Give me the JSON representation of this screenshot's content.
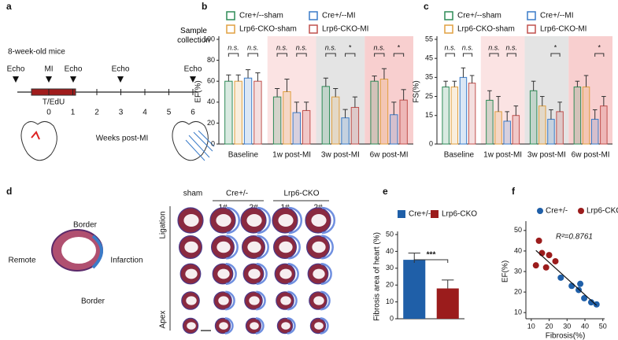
{
  "panel_labels": [
    "a",
    "b",
    "c",
    "d",
    "e",
    "f"
  ],
  "timeline": {
    "title": "8-week-old mice",
    "events": [
      "Echo",
      "MI",
      "Echo",
      "Echo",
      "Sample collection",
      "Echo"
    ],
    "treatment": "T/EdU",
    "weeks": [
      0,
      1,
      2,
      3,
      4,
      5,
      6
    ],
    "axis_label": "Weeks post-MI"
  },
  "histology": {
    "schematic": [
      "Border",
      "Remote",
      "Infarction",
      "Border"
    ],
    "columns": [
      "sham",
      "Cre+/-",
      "Lrp6-CKO"
    ],
    "replicates": [
      "1#",
      "2#",
      "1#",
      "2#"
    ],
    "axis": [
      "Ligation",
      "Apex"
    ]
  },
  "chart_data": [
    {
      "type": "bar",
      "ylabel": "EF(%)",
      "categories": [
        "Baseline",
        "1w post-MI",
        "3w post-MI",
        "6w post-MI"
      ],
      "series": [
        {
          "name": "Cre+/--sham",
          "color": "#2e8b57",
          "values": [
            60,
            45,
            55,
            60
          ],
          "errors": [
            6,
            8,
            8,
            5
          ]
        },
        {
          "name": "Lrp6-CKO-sham",
          "color": "#e0a040",
          "values": [
            60,
            50,
            45,
            62
          ],
          "errors": [
            6,
            12,
            8,
            10
          ]
        },
        {
          "name": "Cre+/--MI",
          "color": "#3a7bc8",
          "values": [
            63,
            30,
            25,
            28
          ],
          "errors": [
            8,
            10,
            8,
            12
          ]
        },
        {
          "name": "Lrp6-CKO-MI",
          "color": "#c0504d",
          "values": [
            60,
            32,
            35,
            42
          ],
          "errors": [
            8,
            8,
            10,
            10
          ]
        }
      ],
      "band_colors": [
        "#ffffff",
        "#fbe3e3",
        "#e4e4e4",
        "#f8cfcf"
      ],
      "significance": [
        [
          "n.s.",
          "n.s."
        ],
        [
          "n.s.",
          "n.s."
        ],
        [
          "n.s.",
          "*"
        ],
        [
          "n.s.",
          "*"
        ]
      ],
      "ylim": [
        0,
        100
      ],
      "yticks": [
        0,
        20,
        40,
        60,
        80,
        100
      ]
    },
    {
      "type": "bar",
      "ylabel": "FS(%)",
      "categories": [
        "Baseline",
        "1w post-MI",
        "3w post-MI",
        "6w post-MI"
      ],
      "series": [
        {
          "name": "Cre+/--sham",
          "color": "#2e8b57",
          "values": [
            30,
            23,
            28,
            30
          ],
          "errors": [
            3,
            5,
            5,
            3
          ]
        },
        {
          "name": "Lrp6-CKO-sham",
          "color": "#e0a040",
          "values": [
            30,
            17,
            20,
            30
          ],
          "errors": [
            3,
            8,
            5,
            6
          ]
        },
        {
          "name": "Cre+/--MI",
          "color": "#3a7bc8",
          "values": [
            35,
            12,
            13,
            13
          ],
          "errors": [
            5,
            5,
            5,
            5
          ]
        },
        {
          "name": "Lrp6-CKO-MI",
          "color": "#c0504d",
          "values": [
            32,
            15,
            17,
            20
          ],
          "errors": [
            4,
            5,
            5,
            5
          ]
        }
      ],
      "band_colors": [
        "#ffffff",
        "#fbe3e3",
        "#e4e4e4",
        "#f8cfcf"
      ],
      "significance": [
        [
          "n.s.",
          "n.s."
        ],
        [
          "n.s.",
          "n.s."
        ],
        [
          null,
          "*"
        ],
        [
          null,
          "*"
        ]
      ],
      "ylim": [
        0,
        55
      ],
      "yticks": [
        0,
        15,
        25,
        35,
        45,
        55
      ]
    },
    {
      "type": "bar",
      "ylabel": "Fibrosis area of heart (%)",
      "categories": [
        "Cre+/-",
        "Lrp6-CKO"
      ],
      "values": [
        35,
        18
      ],
      "errors": [
        4,
        5
      ],
      "colors": [
        "#1f5fa8",
        "#9b1c1c"
      ],
      "significance": "***",
      "ylim": [
        0,
        50
      ],
      "yticks": [
        0,
        10,
        20,
        30,
        40,
        50
      ]
    },
    {
      "type": "scatter",
      "xlabel": "Fibrosis(%)",
      "ylabel": "EF(%)",
      "annotation": "R²=0.8761",
      "series": [
        {
          "name": "Cre+/-",
          "color": "#1f5fa8",
          "x": [
            26.5,
            32.6,
            37.4,
            36.5,
            39.6,
            43.5,
            46.5
          ],
          "values": [
            27,
            23,
            24,
            21,
            17,
            15,
            14
          ]
        },
        {
          "name": "Lrp6-CKO",
          "color": "#9b1c1c",
          "x": [
            14.3,
            16,
            20,
            23.5,
            12.6,
            18.3
          ],
          "values": [
            45,
            39,
            38,
            35,
            33,
            32
          ]
        }
      ],
      "xlim": [
        7,
        51
      ],
      "xticks": [
        10,
        20,
        30,
        40,
        50
      ],
      "ylim": [
        7,
        53
      ],
      "yticks": [
        10,
        20,
        30,
        40,
        50
      ]
    }
  ]
}
